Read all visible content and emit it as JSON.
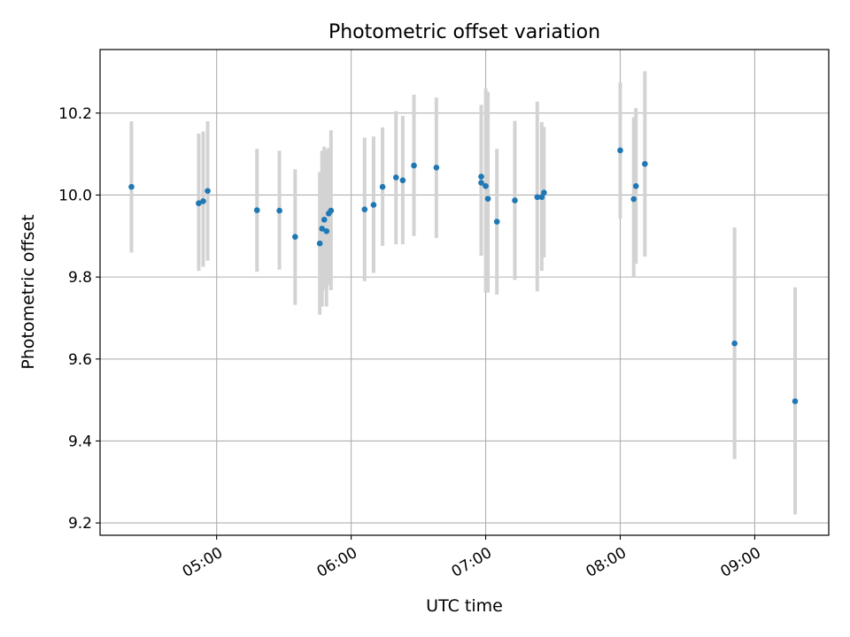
{
  "chart_data": {
    "type": "scatter",
    "title": "Photometric offset variation",
    "xlabel": "UTC time",
    "ylabel": "Photometric offset",
    "x_unit": "time",
    "xlim": [
      "04:08",
      "09:33"
    ],
    "ylim": [
      9.17,
      10.355
    ],
    "x_ticks": [
      "05:00",
      "06:00",
      "07:00",
      "08:00",
      "09:00"
    ],
    "y_ticks": [
      9.2,
      9.4,
      9.6,
      9.8,
      10.0,
      10.2
    ],
    "grid": true,
    "marker_color": "#1f77b4",
    "errorbar_color": "#d3d3d3",
    "points": [
      {
        "t": "04:22",
        "y": 10.02,
        "lo": 9.86,
        "hi": 10.18
      },
      {
        "t": "04:52",
        "y": 9.98,
        "lo": 9.815,
        "hi": 10.15
      },
      {
        "t": "04:54",
        "y": 9.985,
        "lo": 9.825,
        "hi": 10.155
      },
      {
        "t": "04:56",
        "y": 10.01,
        "lo": 9.84,
        "hi": 10.18
      },
      {
        "t": "05:18",
        "y": 9.963,
        "lo": 9.813,
        "hi": 10.113
      },
      {
        "t": "05:28",
        "y": 9.962,
        "lo": 9.818,
        "hi": 10.108
      },
      {
        "t": "05:35",
        "y": 9.898,
        "lo": 9.732,
        "hi": 10.063
      },
      {
        "t": "05:46",
        "y": 9.882,
        "lo": 9.708,
        "hi": 10.056
      },
      {
        "t": "05:47",
        "y": 9.918,
        "lo": 9.728,
        "hi": 10.108
      },
      {
        "t": "05:48",
        "y": 9.94,
        "lo": 9.768,
        "hi": 10.118
      },
      {
        "t": "05:49",
        "y": 9.912,
        "lo": 9.728,
        "hi": 10.11
      },
      {
        "t": "05:50",
        "y": 9.955,
        "lo": 9.78,
        "hi": 10.115
      },
      {
        "t": "05:51",
        "y": 9.962,
        "lo": 9.768,
        "hi": 10.158
      },
      {
        "t": "06:06",
        "y": 9.965,
        "lo": 9.79,
        "hi": 10.14
      },
      {
        "t": "06:10",
        "y": 9.976,
        "lo": 9.81,
        "hi": 10.143
      },
      {
        "t": "06:14",
        "y": 10.02,
        "lo": 9.876,
        "hi": 10.165
      },
      {
        "t": "06:20",
        "y": 10.043,
        "lo": 9.88,
        "hi": 10.205
      },
      {
        "t": "06:23",
        "y": 10.036,
        "lo": 9.88,
        "hi": 10.193
      },
      {
        "t": "06:28",
        "y": 10.072,
        "lo": 9.9,
        "hi": 10.245
      },
      {
        "t": "06:38",
        "y": 10.067,
        "lo": 9.895,
        "hi": 10.238
      },
      {
        "t": "06:58",
        "y": 10.045,
        "lo": 9.852,
        "hi": 10.22
      },
      {
        "t": "06:58",
        "y": 10.03,
        "lo": 9.852,
        "hi": 10.22
      },
      {
        "t": "07:00",
        "y": 10.022,
        "lo": 9.762,
        "hi": 10.26
      },
      {
        "t": "07:01",
        "y": 9.991,
        "lo": 9.762,
        "hi": 10.252
      },
      {
        "t": "07:05",
        "y": 9.935,
        "lo": 9.757,
        "hi": 10.113
      },
      {
        "t": "07:13",
        "y": 9.987,
        "lo": 9.793,
        "hi": 10.181
      },
      {
        "t": "07:23",
        "y": 9.995,
        "lo": 9.765,
        "hi": 10.228
      },
      {
        "t": "07:25",
        "y": 9.995,
        "lo": 9.815,
        "hi": 10.178
      },
      {
        "t": "07:26",
        "y": 10.006,
        "lo": 9.848,
        "hi": 10.166
      },
      {
        "t": "08:00",
        "y": 10.109,
        "lo": 9.943,
        "hi": 10.275
      },
      {
        "t": "08:06",
        "y": 9.99,
        "lo": 9.8,
        "hi": 10.19
      },
      {
        "t": "08:07",
        "y": 10.022,
        "lo": 9.832,
        "hi": 10.212
      },
      {
        "t": "08:11",
        "y": 10.076,
        "lo": 9.85,
        "hi": 10.302
      },
      {
        "t": "08:51",
        "y": 9.638,
        "lo": 9.356,
        "hi": 9.921
      },
      {
        "t": "09:18",
        "y": 9.497,
        "lo": 9.221,
        "hi": 9.775
      }
    ]
  }
}
